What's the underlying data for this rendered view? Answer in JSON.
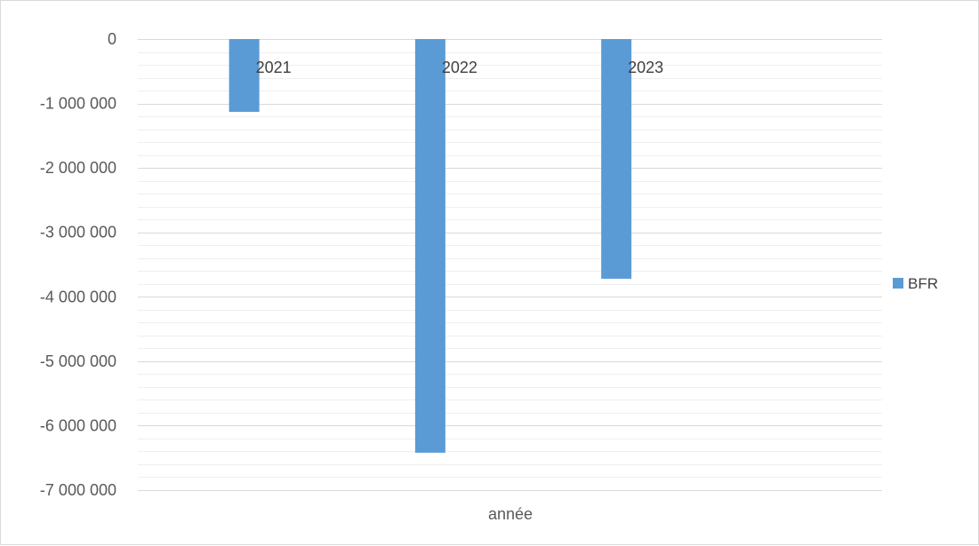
{
  "chart_data": {
    "type": "bar",
    "title": "",
    "xlabel": "année",
    "ylabel": "",
    "categories": [
      "2021",
      "2022",
      "2023"
    ],
    "series": [
      {
        "name": "BFR",
        "values": [
          -1130000,
          -6420000,
          -3720000
        ],
        "color": "#5b9bd5"
      }
    ],
    "yticks": [
      0,
      -1000000,
      -2000000,
      -3000000,
      -4000000,
      -5000000,
      -6000000,
      -7000000
    ],
    "ytick_labels": [
      "0",
      "-1 000 000",
      "-2 000 000",
      "-3 000 000",
      "-4 000 000",
      "-5 000 000",
      "-6 000 000",
      "-7 000 000"
    ],
    "ylim": [
      -7000000,
      0
    ],
    "grid": true,
    "minor_grid": true,
    "legend_position": "right",
    "colors": {
      "bar": "#5b9bd5",
      "major_grid": "#d9d9d9",
      "minor_grid": "#efefef",
      "frame": "#d9d9d9"
    }
  }
}
